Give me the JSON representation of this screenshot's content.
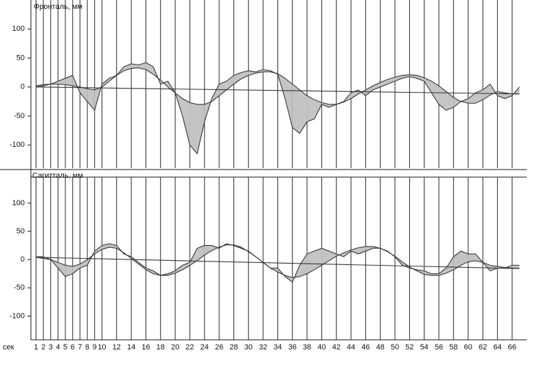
{
  "chart_data": [
    {
      "type": "area-between",
      "title": "Фронталь, мм",
      "x": [
        1,
        2,
        3,
        4,
        5,
        6,
        7,
        8,
        9,
        10,
        11,
        12,
        13,
        14,
        15,
        16,
        17,
        18,
        19,
        20,
        21,
        22,
        23,
        24,
        25,
        26,
        27,
        28,
        29,
        30,
        31,
        32,
        33,
        34,
        35,
        36,
        37,
        38,
        39,
        40,
        41,
        42,
        43,
        44,
        45,
        46,
        47,
        48,
        49,
        50,
        51,
        52,
        53,
        54,
        55,
        56,
        57,
        58,
        59,
        60,
        61,
        62,
        63,
        64,
        65,
        66,
        67
      ],
      "series": [
        {
          "color": "#333333",
          "values": [
            0,
            2,
            5,
            10,
            15,
            20,
            -10,
            -25,
            -40,
            5,
            15,
            20,
            35,
            40,
            38,
            42,
            35,
            5,
            10,
            -10,
            -50,
            -100,
            -115,
            -60,
            -20,
            5,
            10,
            20,
            25,
            28,
            26,
            30,
            28,
            22,
            -20,
            -70,
            -80,
            -60,
            -55,
            -30,
            -35,
            -30,
            -25,
            -10,
            -5,
            -15,
            -5,
            0,
            5,
            10,
            15,
            18,
            15,
            10,
            -10,
            -30,
            -40,
            -35,
            -25,
            -20,
            -10,
            -5,
            5,
            -15,
            -20,
            -15,
            0
          ]
        },
        {
          "color": "#333333",
          "values": [
            2,
            4,
            5,
            5,
            4,
            2,
            0,
            -3,
            -5,
            0,
            10,
            20,
            28,
            32,
            33,
            30,
            22,
            12,
            0,
            -10,
            -20,
            -27,
            -30,
            -30,
            -25,
            -15,
            -5,
            5,
            14,
            20,
            24,
            26,
            26,
            23,
            15,
            5,
            -5,
            -15,
            -22,
            -27,
            -30,
            -30,
            -26,
            -20,
            -12,
            -5,
            2,
            8,
            13,
            17,
            20,
            21,
            20,
            16,
            10,
            2,
            -8,
            -18,
            -25,
            -28,
            -28,
            -22,
            -14,
            -8,
            -10,
            -12,
            -12
          ]
        },
        {
          "color": "#333333",
          "x": [
            1,
            67
          ],
          "values": [
            0,
            -12
          ]
        }
      ],
      "fill": "#c4c4c4",
      "xlim": [
        0.3,
        68
      ],
      "ylim": [
        -140,
        150
      ],
      "xticks": [
        1,
        2,
        3,
        4,
        5,
        6,
        7,
        8,
        9,
        10,
        12,
        14,
        16,
        18,
        20,
        22,
        24,
        26,
        28,
        30,
        32,
        34,
        36,
        38,
        40,
        42,
        44,
        46,
        48,
        50,
        52,
        54,
        56,
        58,
        60,
        62,
        64,
        66
      ],
      "yticks": [
        -100,
        -50,
        0,
        50,
        100
      ]
    },
    {
      "type": "area-between",
      "title": "Сагитталь, мм",
      "xlabel": "сек",
      "x": [
        1,
        2,
        3,
        4,
        5,
        6,
        7,
        8,
        9,
        10,
        11,
        12,
        13,
        14,
        15,
        16,
        17,
        18,
        19,
        20,
        21,
        22,
        23,
        24,
        25,
        26,
        27,
        28,
        29,
        30,
        31,
        32,
        33,
        34,
        35,
        36,
        37,
        38,
        39,
        40,
        41,
        42,
        43,
        44,
        45,
        46,
        47,
        48,
        49,
        50,
        51,
        52,
        53,
        54,
        55,
        56,
        57,
        58,
        59,
        60,
        61,
        62,
        63,
        64,
        65,
        66,
        67
      ],
      "series": [
        {
          "color": "#333333",
          "values": [
            5,
            5,
            0,
            -15,
            -30,
            -25,
            -15,
            -10,
            15,
            25,
            28,
            25,
            10,
            5,
            -5,
            -15,
            -20,
            -28,
            -25,
            -20,
            -10,
            -5,
            20,
            25,
            25,
            20,
            28,
            25,
            20,
            15,
            5,
            -5,
            -15,
            -15,
            -30,
            -40,
            -10,
            10,
            15,
            20,
            15,
            10,
            5,
            15,
            10,
            15,
            20,
            20,
            15,
            5,
            -10,
            -15,
            -18,
            -20,
            -25,
            -25,
            -15,
            5,
            15,
            10,
            10,
            -5,
            -20,
            -15,
            -15,
            -10,
            -10
          ]
        },
        {
          "color": "#333333",
          "values": [
            4,
            2,
            0,
            -5,
            -10,
            -12,
            -8,
            0,
            10,
            18,
            22,
            20,
            12,
            2,
            -8,
            -18,
            -25,
            -28,
            -28,
            -24,
            -18,
            -10,
            -2,
            8,
            16,
            22,
            26,
            26,
            22,
            14,
            5,
            -5,
            -15,
            -22,
            -28,
            -32,
            -30,
            -25,
            -18,
            -10,
            -2,
            6,
            12,
            17,
            21,
            23,
            23,
            20,
            14,
            6,
            -4,
            -13,
            -20,
            -26,
            -28,
            -28,
            -24,
            -18,
            -10,
            -4,
            -2,
            -5,
            -10,
            -12,
            -14,
            -15,
            -16
          ]
        },
        {
          "color": "#333333",
          "x": [
            1,
            67
          ],
          "values": [
            4,
            -16
          ]
        }
      ],
      "fill": "#c4c4c4",
      "xlim": [
        0.3,
        68
      ],
      "ylim": [
        -142,
        146
      ],
      "xticks": [
        1,
        2,
        3,
        4,
        5,
        6,
        7,
        8,
        9,
        10,
        12,
        14,
        16,
        18,
        20,
        22,
        24,
        26,
        28,
        30,
        32,
        34,
        36,
        38,
        40,
        42,
        44,
        46,
        48,
        50,
        52,
        54,
        56,
        58,
        60,
        62,
        64,
        66
      ],
      "yticks": [
        -100,
        -50,
        0,
        50,
        100
      ]
    }
  ]
}
